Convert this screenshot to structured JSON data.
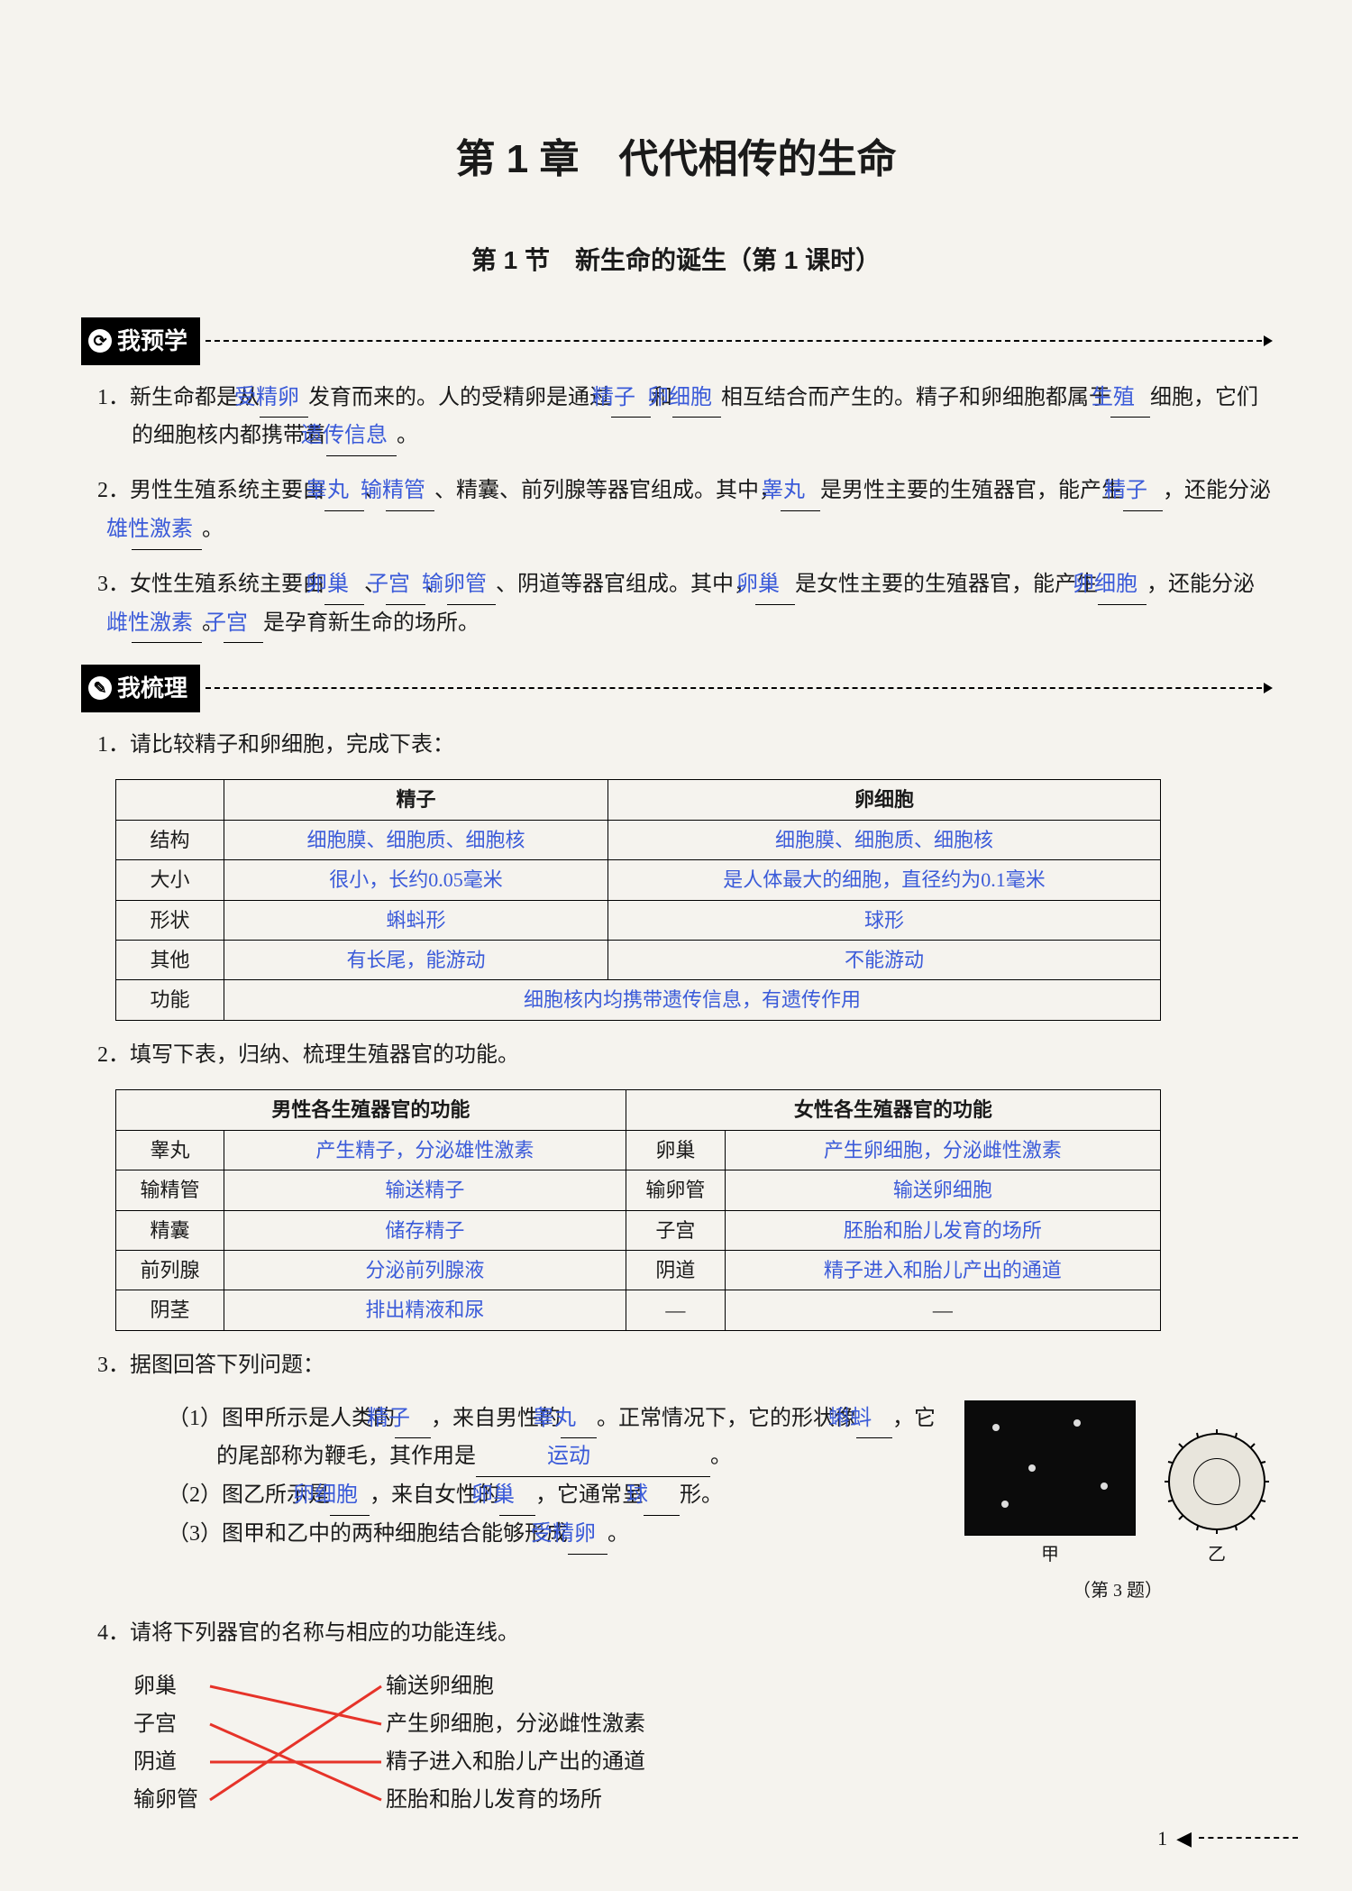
{
  "chapter": "第 1 章　代代相传的生命",
  "section": "第 1 节　新生命的诞生（第 1 课时）",
  "tabs": {
    "preview": "我预学",
    "sort": "我梳理"
  },
  "preview": {
    "q1": {
      "num": "1．",
      "t1": "新生命都是从",
      "b1": "受精卵",
      "t2": "发育而来的。人的受精卵是通过",
      "b2": "精子",
      "t3": "和",
      "b3": "卵细胞",
      "t4": "相互结合而产生的。精子和卵细胞都属于",
      "b4": "生殖",
      "t5": "细胞，它们的细胞核内都携带着",
      "b5": "遗传信息",
      "t6": "。"
    },
    "q2": {
      "num": "2．",
      "t1": "男性生殖系统主要由",
      "b1": "睾丸",
      "t2": "、",
      "b2": "输精管",
      "t3": "、精囊、前列腺等器官组成。其中，",
      "b3": "睾丸",
      "t4": "是男性主要的生殖器官，能产生",
      "b4": "精子",
      "t5": "，还能分泌",
      "b5": "雄性激素",
      "t6": "。"
    },
    "q3": {
      "num": "3．",
      "t1": "女性生殖系统主要由",
      "b1": "卵巢",
      "t2": "、",
      "b2": "子宫",
      "t3": "、",
      "b3": "输卵管",
      "t4": "、阴道等器官组成。其中，",
      "b4": "卵巢",
      "t5": "是女性主要的生殖器官，能产生",
      "b5": "卵细胞",
      "t6": "，还能分泌",
      "b6": "雌性激素",
      "t7": "。",
      "b7": "子宫",
      "t8": "是孕育新生命的场所。"
    }
  },
  "sort": {
    "q1": {
      "num": "1．",
      "text": "请比较精子和卵细胞，完成下表："
    },
    "table1": {
      "headers": [
        "",
        "精子",
        "卵细胞"
      ],
      "rows": [
        {
          "label": "结构",
          "a": "细胞膜、细胞质、细胞核",
          "b": "细胞膜、细胞质、细胞核"
        },
        {
          "label": "大小",
          "a": "很小，长约0.05毫米",
          "b": "是人体最大的细胞，直径约为0.1毫米"
        },
        {
          "label": "形状",
          "a": "蝌蚪形",
          "b": "球形"
        },
        {
          "label": "其他",
          "a": "有长尾，能游动",
          "b": "不能游动"
        },
        {
          "label": "功能",
          "merged": "细胞核内均携带遗传信息，有遗传作用"
        }
      ]
    },
    "q2": {
      "num": "2．",
      "text": "填写下表，归纳、梳理生殖器官的功能。"
    },
    "table2": {
      "h1": "男性各生殖器官的功能",
      "h2": "女性各生殖器官的功能",
      "rows": [
        {
          "l": "睾丸",
          "la": "产生精子，分泌雄性激素",
          "r": "卵巢",
          "ra": "产生卵细胞，分泌雌性激素"
        },
        {
          "l": "输精管",
          "la": "输送精子",
          "r": "输卵管",
          "ra": "输送卵细胞"
        },
        {
          "l": "精囊",
          "la": "储存精子",
          "r": "子宫",
          "ra": "胚胎和胎儿发育的场所"
        },
        {
          "l": "前列腺",
          "la": "分泌前列腺液",
          "r": "阴道",
          "ra": "精子进入和胎儿产出的通道"
        },
        {
          "l": "阴茎",
          "la": "排出精液和尿",
          "r": "—",
          "ra": "—"
        }
      ]
    },
    "q3": {
      "num": "3．",
      "text": "据图回答下列问题：",
      "s1": {
        "num": "（1）",
        "t1": "图甲所示是人类的",
        "b1": "精子",
        "t2": "，来自男性的",
        "b2": "睾丸",
        "t3": "。正常情况下，它的形状像",
        "b3": "蝌蚪",
        "t4": "，它的尾部称为鞭毛，其作用是",
        "b4": "运动",
        "t5": "。"
      },
      "s2": {
        "num": "（2）",
        "t1": "图乙所示是",
        "b1": "卵细胞",
        "t2": "，来自女性的",
        "b2": "卵巢",
        "t3": "，它通常呈",
        "b3": "球",
        "t4": "形。"
      },
      "s3": {
        "num": "（3）",
        "t1": "图甲和乙中的两种细胞结合能够形成",
        "b1": "受精卵",
        "t2": "。"
      },
      "captionA": "甲",
      "captionB": "乙",
      "captionMain": "（第 3 题）"
    },
    "q4": {
      "num": "4．",
      "text": "请将下列器官的名称与相应的功能连线。",
      "left": [
        "卵巢",
        "子宫",
        "阴道",
        "输卵管"
      ],
      "right": [
        "输送卵细胞",
        "产生卵细胞，分泌雌性激素",
        "精子进入和胎儿产出的通道",
        "胚胎和胎儿发育的场所"
      ],
      "lines": [
        [
          0,
          1
        ],
        [
          1,
          3
        ],
        [
          2,
          2
        ],
        [
          3,
          0
        ]
      ],
      "line_color": "#e63329"
    }
  },
  "page_number": "1"
}
